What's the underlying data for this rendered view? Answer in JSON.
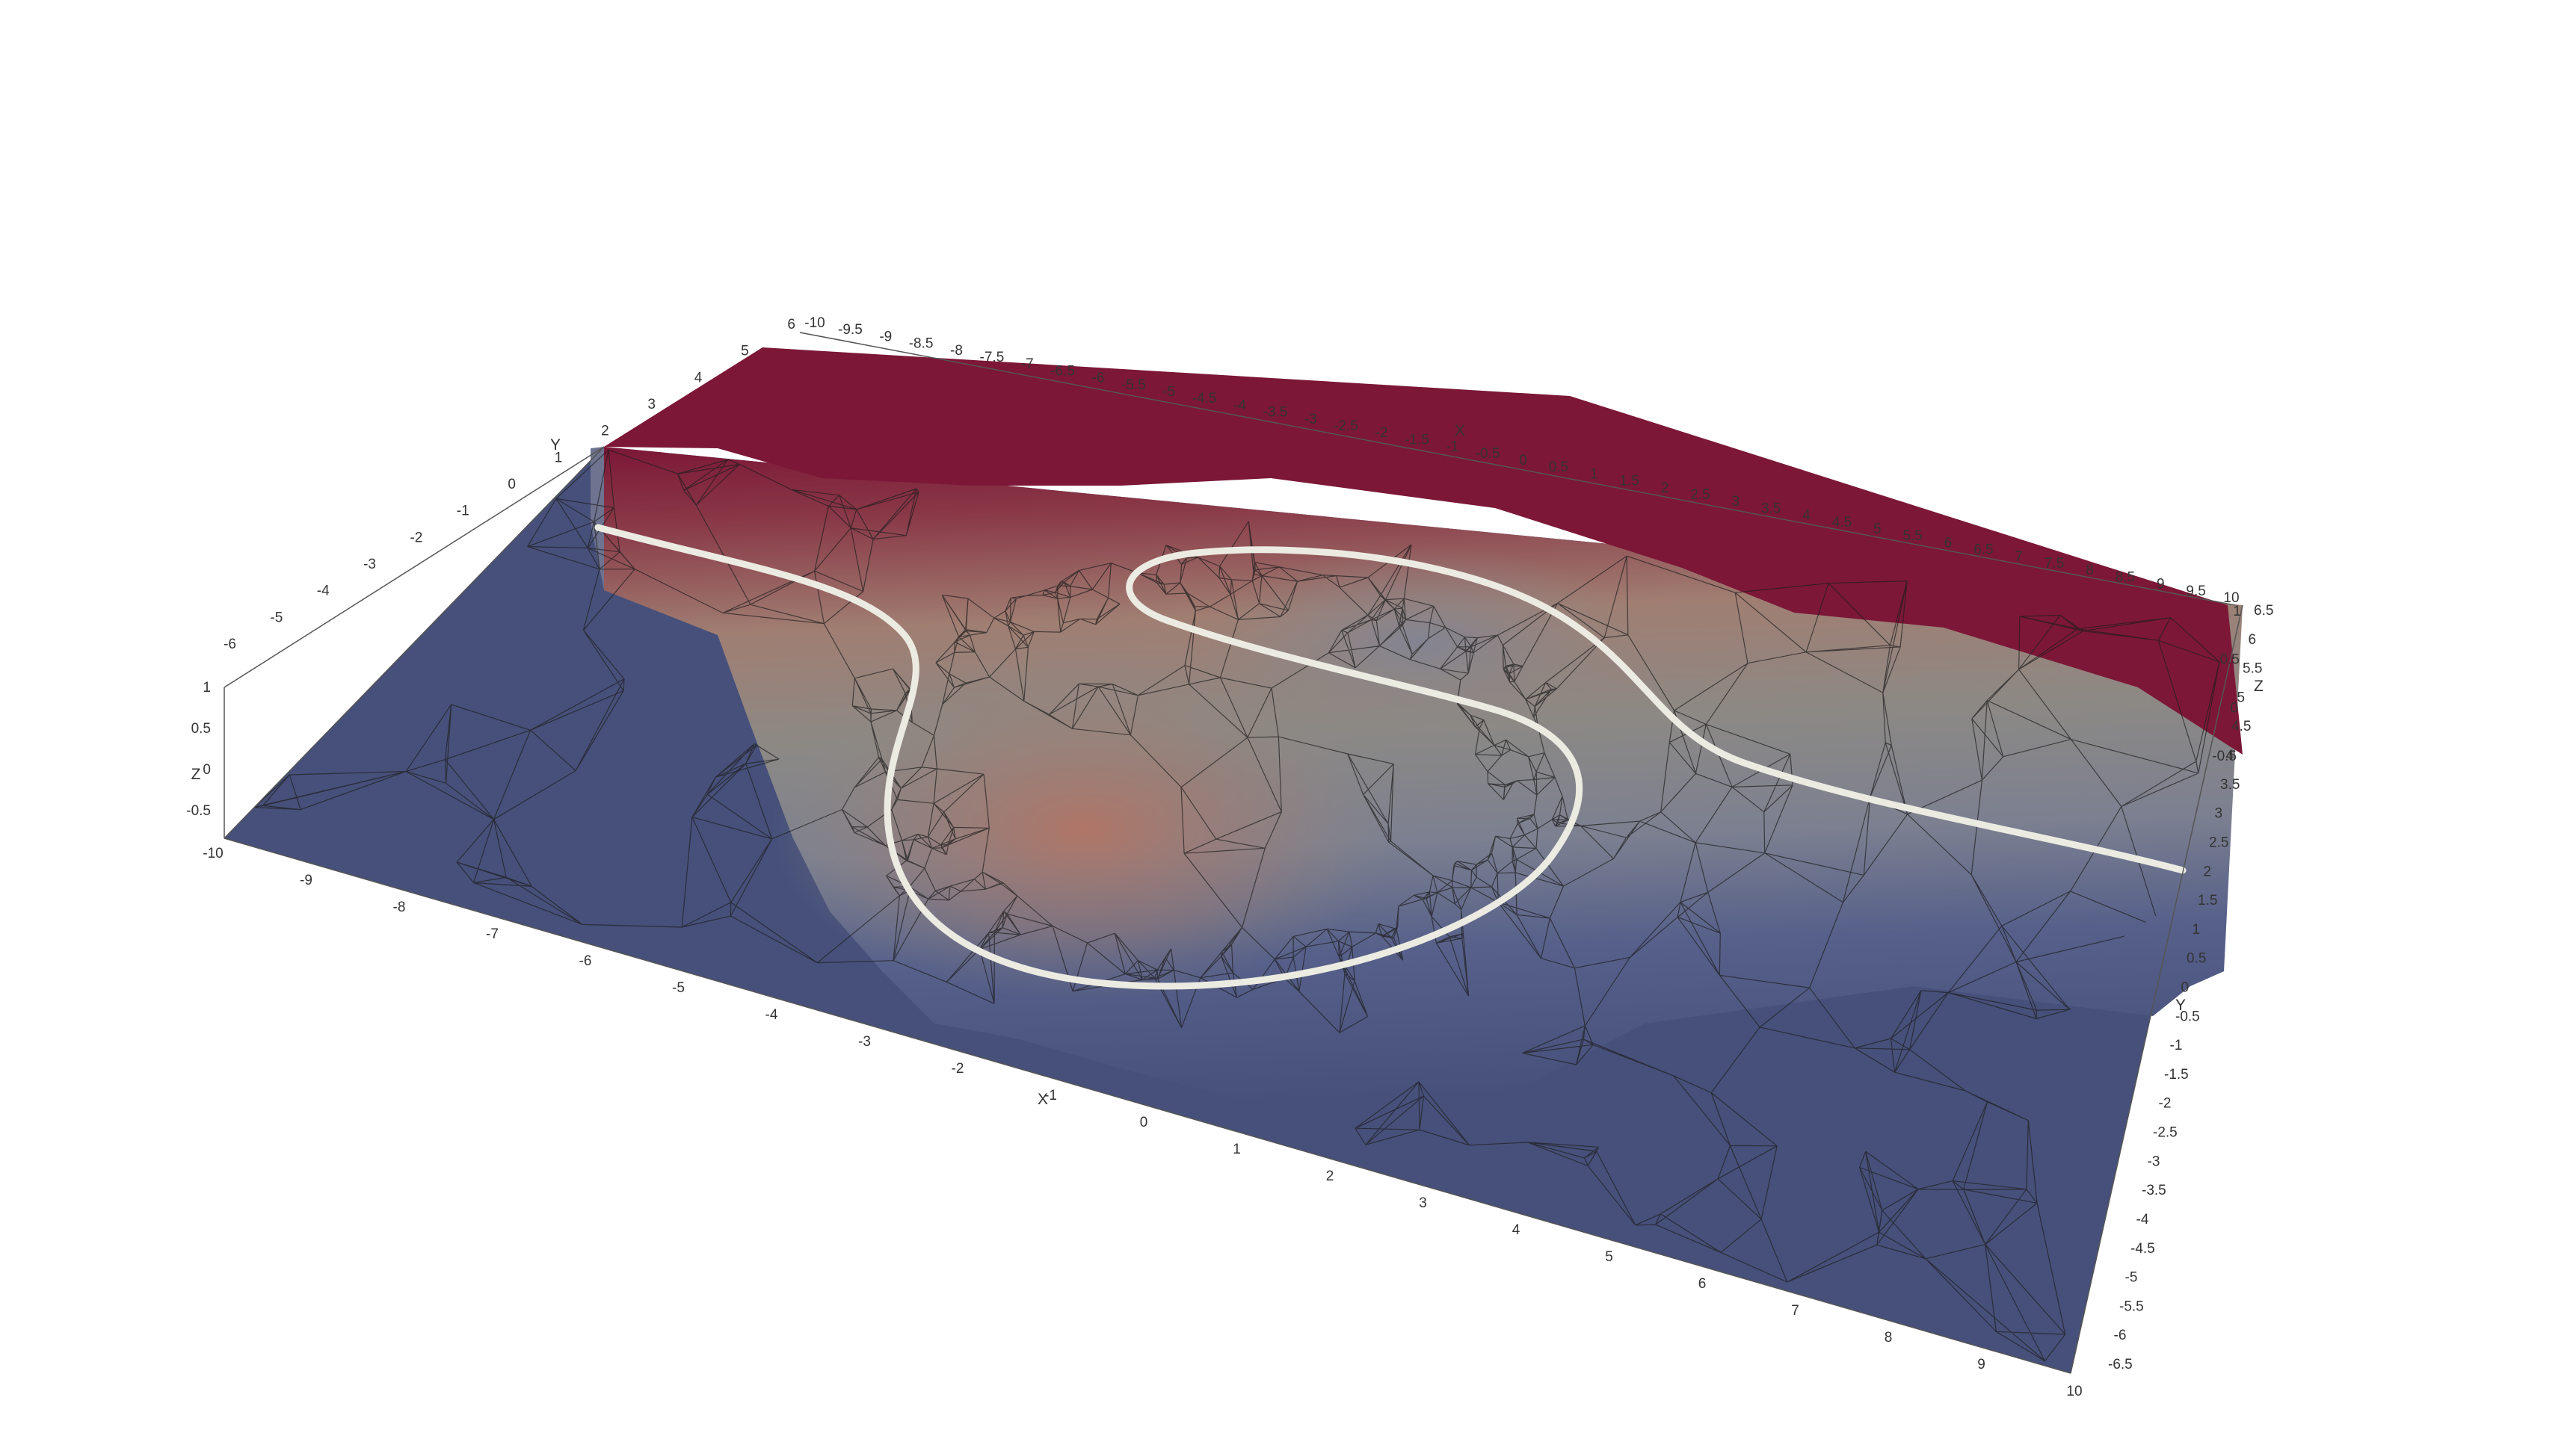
{
  "scene": {
    "background": "#ffffff",
    "colormap": {
      "low": "#46507a",
      "mid": "#8e8a86",
      "high": "#7c1737"
    },
    "contour_color": "#ecebe2",
    "mesh_line_color": "#1e1e1e",
    "axis_color": "#555555"
  },
  "axes": {
    "x_title": "X",
    "y_title": "Y",
    "z_title": "Z",
    "x_ticks_top": [
      "-10",
      "-9.5",
      "-9",
      "-8.5",
      "-8",
      "-7.5",
      "-7",
      "-6.5",
      "-6",
      "-5.5",
      "-5",
      "-4.5",
      "-4",
      "-3.5",
      "-3",
      "-2.5",
      "-2",
      "-1.5",
      "-1",
      "-0.5",
      "0",
      "0.5",
      "1",
      "1.5",
      "2",
      "2.5",
      "3",
      "3.5",
      "4",
      "4.5",
      "5",
      "5.5",
      "6",
      "6.5",
      "7",
      "7.5",
      "8",
      "8.5",
      "9",
      "9.5",
      "10"
    ],
    "x_ticks_bottom": [
      "-10",
      "-9",
      "-8",
      "-7",
      "-6",
      "-5",
      "-4",
      "-3",
      "-2",
      "-1",
      "0",
      "1",
      "2",
      "3",
      "4",
      "5",
      "6",
      "7",
      "8",
      "9",
      "10"
    ],
    "y_ticks_left": [
      "-6",
      "-5",
      "-4",
      "-3",
      "-2",
      "-1",
      "0",
      "1",
      "2",
      "3",
      "4",
      "5",
      "6"
    ],
    "y_ticks_right": [
      "6.5",
      "6",
      "5.5",
      "5",
      "4.5",
      "4",
      "3.5",
      "3",
      "2.5",
      "2",
      "1.5",
      "1",
      "0.5",
      "0",
      "-0.5",
      "-1",
      "-1.5",
      "-2",
      "-2.5",
      "-3",
      "-3.5",
      "-4",
      "-4.5",
      "-5",
      "-5.5",
      "-6",
      "-6.5"
    ],
    "z_ticks_left": [
      "1",
      "0.5",
      "0",
      "-0.5"
    ],
    "z_ticks_right": [
      "1",
      "0.5",
      "0",
      "-0.5"
    ]
  }
}
